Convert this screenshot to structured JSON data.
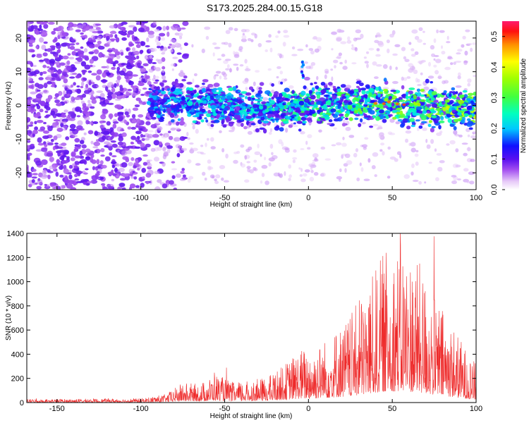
{
  "title": "S173.2025.284.00.15.G18",
  "chart_data": [
    {
      "type": "heatmap",
      "xlabel": "Height of straight line (km)",
      "ylabel": "Frequency (Hz)",
      "xlim": [
        -168,
        100
      ],
      "ylim": [
        -25,
        25
      ],
      "xticks": [
        -150,
        -100,
        -50,
        0,
        50,
        100
      ],
      "yticks": [
        -20,
        -10,
        0,
        10,
        20
      ],
      "colorbar": {
        "label": "Normalized spectral amplitude",
        "range": [
          0,
          0.55
        ],
        "ticks": [
          "0.0",
          "0.1",
          "0.2",
          "0.3",
          "0.4",
          "0.5"
        ]
      },
      "signal_band_hz": [
        -5,
        5
      ],
      "noise_region_km": [
        -168,
        -85
      ]
    },
    {
      "type": "line",
      "xlabel": "Height of straight line (km)",
      "ylabel": "SNR (10 * v/v)",
      "xlim": [
        -168,
        100
      ],
      "ylim": [
        0,
        1400
      ],
      "xticks": [
        -150,
        -100,
        -50,
        0,
        50,
        100
      ],
      "yticks": [
        0,
        200,
        400,
        600,
        800,
        1000,
        1200,
        1400
      ],
      "color": "#ee2a2a",
      "envelope": {
        "x": [
          -168,
          -100,
          -85,
          -75,
          -65,
          -55,
          -45,
          -35,
          -25,
          -15,
          -5,
          5,
          15,
          25,
          35,
          45,
          55,
          65,
          75,
          85,
          95,
          100
        ],
        "y": [
          20,
          25,
          50,
          120,
          110,
          170,
          120,
          130,
          150,
          220,
          320,
          340,
          420,
          520,
          690,
          900,
          940,
          850,
          640,
          480,
          300,
          230
        ]
      }
    }
  ]
}
